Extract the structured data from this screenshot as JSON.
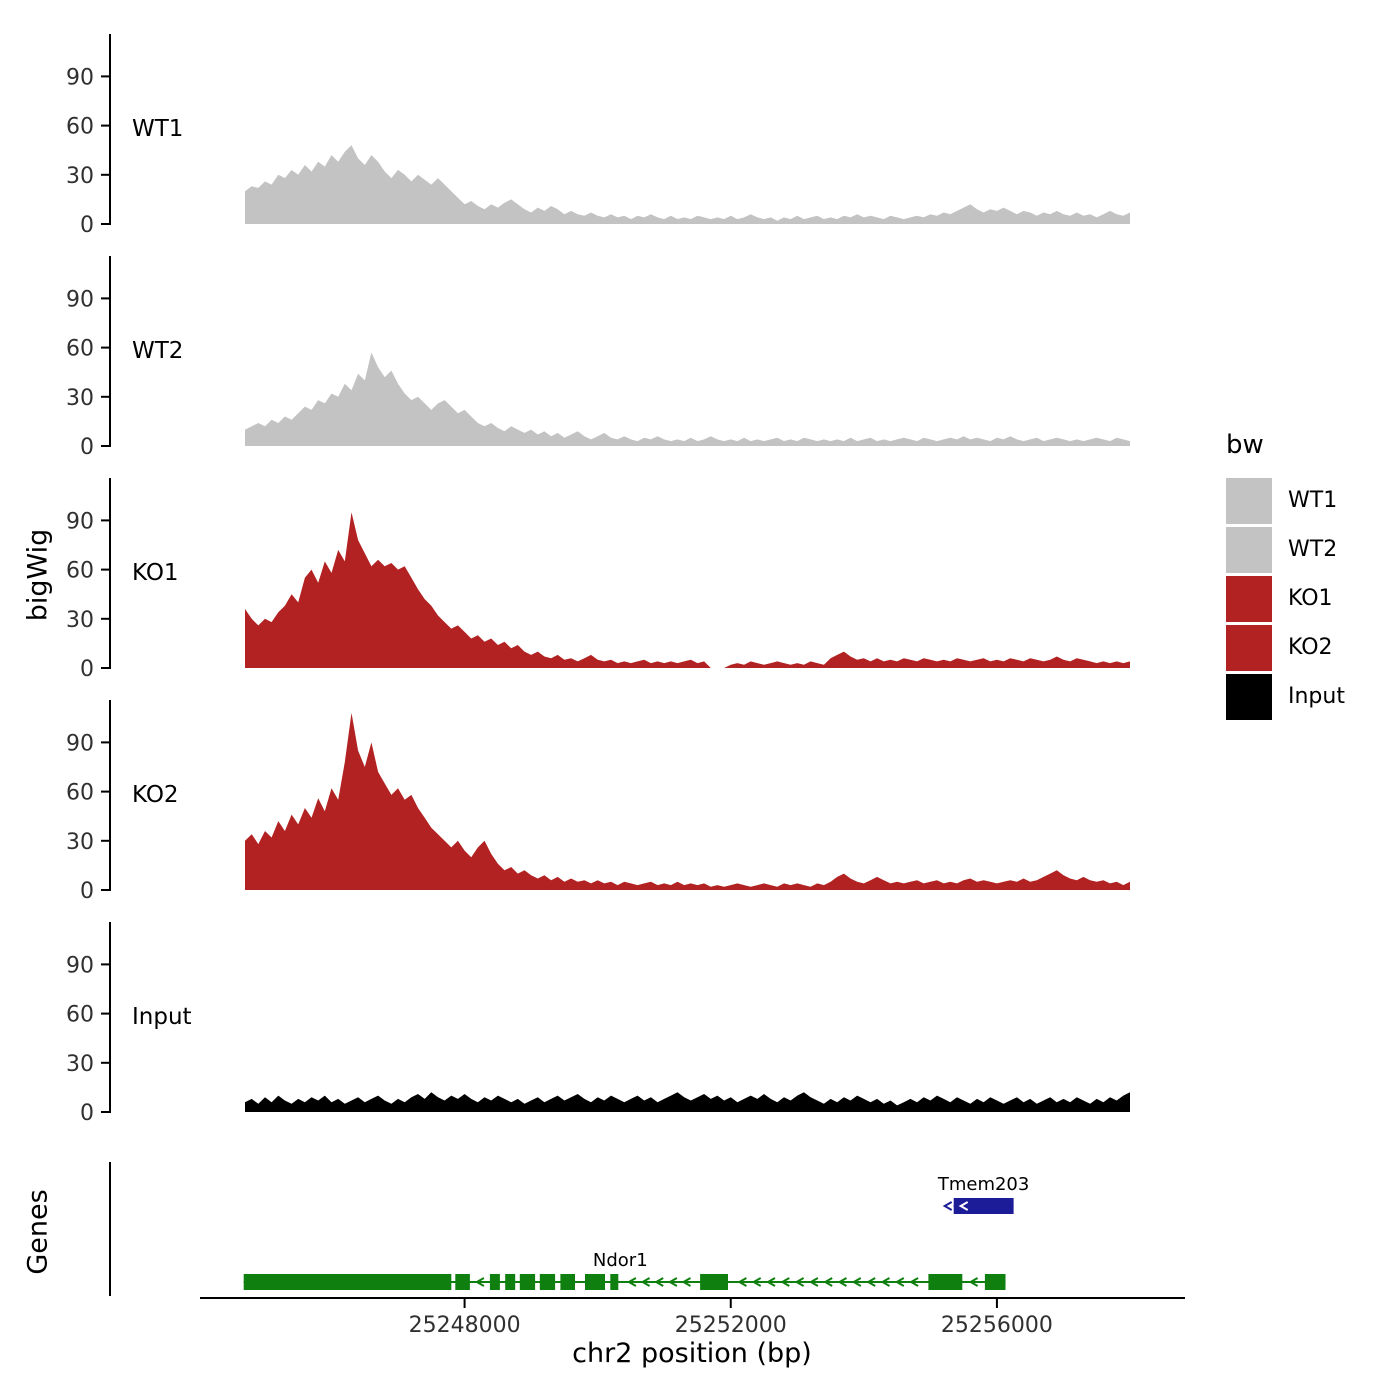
{
  "figure": {
    "genes_panel_label": "Genes"
  },
  "legend": {
    "title": "bw",
    "entries": [
      {
        "label": "WT1",
        "color": "#c3c3c3"
      },
      {
        "label": "WT2",
        "color": "#c3c3c3"
      },
      {
        "label": "KO1",
        "color": "#b22222"
      },
      {
        "label": "KO2",
        "color": "#b22222"
      },
      {
        "label": "Input",
        "color": "#000000"
      }
    ]
  },
  "chart_data": {
    "type": "area",
    "title": "",
    "xlabel": "chr2 position (bp)",
    "ylabel": "bigWig",
    "x_start": 25244700,
    "x_step": 100,
    "xlim": [
      25244000,
      25258700
    ],
    "ylim": [
      0,
      110
    ],
    "yticks": [
      0,
      30,
      60,
      90
    ],
    "xticks": [
      {
        "pos": 25248000,
        "label": "25248000"
      },
      {
        "pos": 25252000,
        "label": "25252000"
      },
      {
        "pos": 25256000,
        "label": "25256000"
      }
    ],
    "tracks": [
      {
        "name": "WT1",
        "color": "#c3c3c3",
        "values": [
          20,
          23,
          22,
          26,
          24,
          30,
          28,
          33,
          30,
          36,
          32,
          38,
          35,
          42,
          38,
          44,
          48,
          40,
          36,
          42,
          38,
          32,
          28,
          33,
          30,
          26,
          30,
          27,
          24,
          28,
          24,
          20,
          16,
          12,
          14,
          11,
          9,
          12,
          10,
          13,
          15,
          12,
          9,
          7,
          10,
          8,
          11,
          9,
          6,
          8,
          6,
          5,
          7,
          5,
          4,
          6,
          4,
          5,
          3,
          5,
          4,
          6,
          4,
          3,
          5,
          3,
          4,
          3,
          5,
          4,
          3,
          4,
          3,
          5,
          3,
          4,
          6,
          4,
          3,
          4,
          2,
          4,
          3,
          5,
          3,
          4,
          5,
          3,
          4,
          3,
          5,
          4,
          6,
          4,
          5,
          4,
          3,
          5,
          4,
          3,
          4,
          5,
          4,
          6,
          5,
          7,
          6,
          8,
          10,
          12,
          9,
          7,
          9,
          8,
          10,
          8,
          6,
          8,
          7,
          5,
          7,
          6,
          8,
          6,
          5,
          7,
          5,
          6,
          4,
          6,
          8,
          6,
          5,
          7
        ]
      },
      {
        "name": "WT2",
        "color": "#c3c3c3",
        "values": [
          10,
          12,
          14,
          12,
          16,
          14,
          18,
          16,
          20,
          24,
          22,
          28,
          26,
          32,
          30,
          38,
          34,
          44,
          40,
          57,
          48,
          42,
          46,
          38,
          32,
          28,
          30,
          26,
          22,
          26,
          28,
          24,
          20,
          22,
          18,
          14,
          12,
          14,
          11,
          9,
          12,
          10,
          8,
          10,
          7,
          9,
          6,
          8,
          5,
          7,
          9,
          6,
          4,
          6,
          8,
          5,
          4,
          6,
          4,
          3,
          5,
          4,
          6,
          4,
          3,
          4,
          3,
          5,
          3,
          4,
          6,
          4,
          3,
          4,
          3,
          5,
          3,
          4,
          3,
          4,
          5,
          3,
          4,
          3,
          5,
          4,
          3,
          4,
          3,
          4,
          3,
          5,
          3,
          4,
          5,
          3,
          4,
          3,
          4,
          5,
          4,
          3,
          5,
          4,
          3,
          4,
          5,
          4,
          6,
          4,
          5,
          4,
          3,
          5,
          4,
          6,
          4,
          3,
          4,
          5,
          3,
          4,
          5,
          4,
          3,
          4,
          3,
          4,
          5,
          4,
          3,
          5,
          4,
          3
        ]
      },
      {
        "name": "KO1",
        "color": "#b22222",
        "values": [
          36,
          30,
          26,
          30,
          28,
          34,
          38,
          45,
          40,
          55,
          60,
          52,
          65,
          58,
          72,
          65,
          95,
          78,
          70,
          62,
          66,
          62,
          64,
          60,
          62,
          55,
          48,
          42,
          38,
          32,
          28,
          24,
          26,
          22,
          18,
          20,
          16,
          18,
          14,
          16,
          12,
          14,
          10,
          8,
          10,
          7,
          6,
          8,
          5,
          6,
          4,
          6,
          8,
          5,
          4,
          5,
          3,
          4,
          3,
          4,
          5,
          3,
          4,
          3,
          4,
          3,
          4,
          5,
          3,
          4,
          0,
          0,
          0,
          2,
          3,
          2,
          4,
          3,
          2,
          3,
          4,
          3,
          2,
          3,
          2,
          4,
          3,
          2,
          6,
          8,
          10,
          7,
          5,
          6,
          4,
          6,
          4,
          5,
          4,
          6,
          5,
          4,
          6,
          5,
          4,
          5,
          4,
          6,
          5,
          4,
          5,
          6,
          4,
          5,
          4,
          6,
          5,
          4,
          6,
          5,
          4,
          5,
          7,
          5,
          4,
          6,
          5,
          4,
          3,
          4,
          3,
          4,
          3,
          4
        ]
      },
      {
        "name": "KO2",
        "color": "#b22222",
        "values": [
          30,
          34,
          28,
          36,
          32,
          42,
          36,
          46,
          40,
          50,
          44,
          56,
          48,
          62,
          55,
          78,
          108,
          85,
          75,
          90,
          72,
          65,
          58,
          62,
          55,
          58,
          50,
          44,
          38,
          34,
          30,
          26,
          30,
          24,
          20,
          26,
          30,
          22,
          16,
          12,
          14,
          10,
          12,
          9,
          7,
          9,
          6,
          8,
          5,
          7,
          5,
          6,
          4,
          6,
          4,
          5,
          3,
          5,
          4,
          3,
          4,
          5,
          3,
          4,
          3,
          5,
          3,
          4,
          3,
          4,
          2,
          3,
          2,
          3,
          4,
          3,
          2,
          3,
          4,
          3,
          2,
          4,
          3,
          4,
          3,
          2,
          4,
          3,
          5,
          8,
          10,
          7,
          5,
          4,
          6,
          8,
          6,
          4,
          5,
          4,
          5,
          6,
          4,
          5,
          6,
          4,
          5,
          4,
          6,
          7,
          5,
          6,
          5,
          4,
          5,
          6,
          5,
          7,
          5,
          6,
          8,
          10,
          12,
          9,
          7,
          6,
          8,
          6,
          5,
          6,
          4,
          5,
          3,
          5
        ]
      },
      {
        "name": "Input",
        "color": "#000000",
        "values": [
          6,
          8,
          5,
          9,
          6,
          10,
          7,
          5,
          8,
          6,
          9,
          7,
          10,
          6,
          8,
          5,
          7,
          9,
          6,
          8,
          10,
          7,
          5,
          8,
          6,
          9,
          11,
          8,
          12,
          9,
          7,
          10,
          8,
          11,
          8,
          6,
          9,
          7,
          10,
          8,
          6,
          8,
          5,
          7,
          9,
          6,
          8,
          10,
          7,
          9,
          11,
          8,
          6,
          9,
          7,
          10,
          8,
          6,
          8,
          10,
          7,
          9,
          6,
          8,
          10,
          12,
          9,
          7,
          9,
          11,
          8,
          10,
          7,
          9,
          6,
          8,
          10,
          8,
          11,
          8,
          6,
          9,
          7,
          10,
          12,
          9,
          7,
          5,
          8,
          6,
          9,
          7,
          10,
          8,
          6,
          8,
          5,
          7,
          4,
          6,
          8,
          6,
          9,
          7,
          10,
          8,
          6,
          9,
          7,
          5,
          8,
          6,
          9,
          7,
          5,
          7,
          9,
          6,
          8,
          5,
          7,
          9,
          6,
          8,
          6,
          9,
          7,
          5,
          8,
          6,
          9,
          7,
          10,
          12
        ]
      }
    ],
    "genes": [
      {
        "name": "Tmem203",
        "color": "#1c1c99",
        "strand": "-",
        "label_pos": 25255800,
        "exons": [
          [
            25255350,
            25256250
          ]
        ]
      },
      {
        "name": "Ndor1",
        "color": "#0f7f0f",
        "strand": "-",
        "label_pos": 25250340,
        "exons": [
          [
            25244680,
            25247800
          ],
          [
            25247860,
            25248080
          ],
          [
            25248380,
            25248530
          ],
          [
            25248610,
            25248760
          ],
          [
            25248830,
            25249060
          ],
          [
            25249130,
            25249360
          ],
          [
            25249440,
            25249660
          ],
          [
            25249810,
            25250110
          ],
          [
            25250190,
            25250310
          ],
          [
            25251540,
            25251960
          ],
          [
            25254970,
            25255480
          ],
          [
            25255820,
            25256130
          ]
        ]
      }
    ]
  }
}
